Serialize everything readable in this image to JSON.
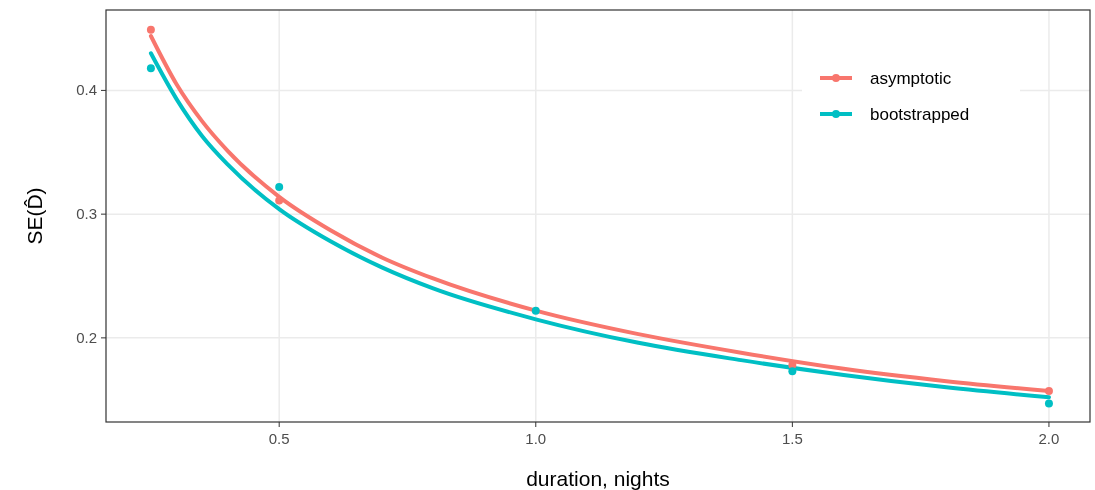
{
  "chart_data": {
    "type": "scatter",
    "xlabel": "duration, nights",
    "ylabel": "SE(D̂)",
    "xlim": [
      0.1625,
      2.08
    ],
    "ylim": [
      0.132,
      0.465
    ],
    "xticks": [
      0.5,
      {
        "value": 1,
        "label": "1.0"
      },
      1.5,
      {
        "value": 2,
        "label": "2.0"
      }
    ],
    "yticks": [
      0.2,
      0.3,
      0.4
    ],
    "grid": true,
    "legend": "top right",
    "series": [
      {
        "type": "line",
        "name": "asymptotic",
        "color": "#f8766d",
        "x": [
          0.25,
          0.3,
          0.35,
          0.4,
          0.5,
          0.6,
          0.7,
          0.8,
          1.0,
          1.2,
          1.4,
          1.6,
          1.8,
          2.0
        ],
        "values": [
          0.444,
          0.405,
          0.375,
          0.351,
          0.314,
          0.287,
          0.265,
          0.248,
          0.222,
          0.203,
          0.188,
          0.175,
          0.165,
          0.157
        ]
      },
      {
        "type": "line",
        "name": "bootstrapped",
        "color": "#00bfc4",
        "x": [
          0.25,
          0.3,
          0.35,
          0.4,
          0.5,
          0.6,
          0.7,
          0.8,
          1.0,
          1.2,
          1.4,
          1.6,
          1.8,
          2.0
        ],
        "values": [
          0.43,
          0.393,
          0.363,
          0.34,
          0.304,
          0.278,
          0.257,
          0.24,
          0.215,
          0.196,
          0.182,
          0.17,
          0.16,
          0.152
        ]
      },
      {
        "marker": "circle",
        "color": "#f8766d",
        "x": [
          0.25,
          0.5,
          1.0,
          1.5,
          2.0
        ],
        "values": [
          0.449,
          0.311,
          null,
          0.178,
          0.157
        ]
      },
      {
        "marker": "circle",
        "color": "#00bfc4",
        "x": [
          0.25,
          0.5,
          1.0,
          1.5,
          2.0
        ],
        "values": [
          0.418,
          0.322,
          0.222,
          0.173,
          0.147
        ]
      }
    ]
  }
}
